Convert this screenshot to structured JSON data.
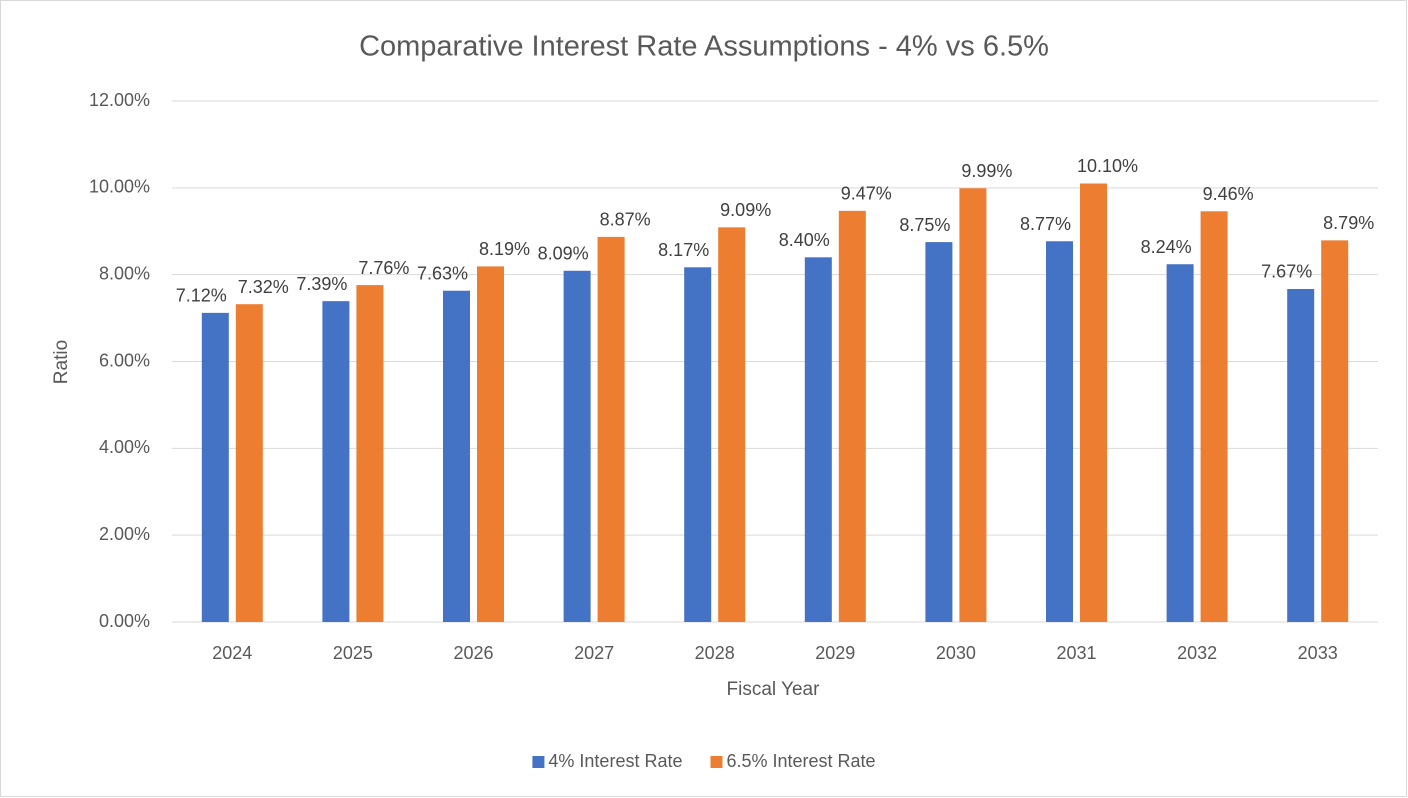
{
  "chart_data": {
    "type": "bar",
    "title": "Comparative Interest Rate Assumptions - 4% vs 6.5%",
    "x_label": "Fiscal Year",
    "y_label": "Ratio",
    "categories": [
      "2024",
      "2025",
      "2026",
      "2027",
      "2028",
      "2029",
      "2030",
      "2031",
      "2032",
      "2033"
    ],
    "series": [
      {
        "name": "4% Interest Rate",
        "color": "#4472c4",
        "values": [
          7.12,
          7.39,
          7.63,
          8.09,
          8.17,
          8.4,
          8.75,
          8.77,
          8.24,
          7.67
        ],
        "value_labels": [
          "7.12%",
          "7.39%",
          "7.63%",
          "8.09%",
          "8.17%",
          "8.40%",
          "8.75%",
          "8.77%",
          "8.24%",
          "7.67%"
        ]
      },
      {
        "name": "6.5% Interest Rate",
        "color": "#ed7d31",
        "values": [
          7.32,
          7.76,
          8.19,
          8.87,
          9.09,
          9.47,
          9.99,
          10.1,
          9.46,
          8.79
        ],
        "value_labels": [
          "7.32%",
          "7.76%",
          "8.19%",
          "8.87%",
          "9.09%",
          "9.47%",
          "9.99%",
          "10.10%",
          "9.46%",
          "8.79%"
        ]
      }
    ],
    "ylim": [
      0,
      12
    ],
    "yticks": [
      {
        "value": 0,
        "label": "0.00%"
      },
      {
        "value": 2,
        "label": "2.00%"
      },
      {
        "value": 4,
        "label": "4.00%"
      },
      {
        "value": 6,
        "label": "6.00%"
      },
      {
        "value": 8,
        "label": "8.00%"
      },
      {
        "value": 10,
        "label": "10.00%"
      },
      {
        "value": 12,
        "label": "12.00%"
      }
    ],
    "grid": true,
    "legend": "bottom"
  }
}
